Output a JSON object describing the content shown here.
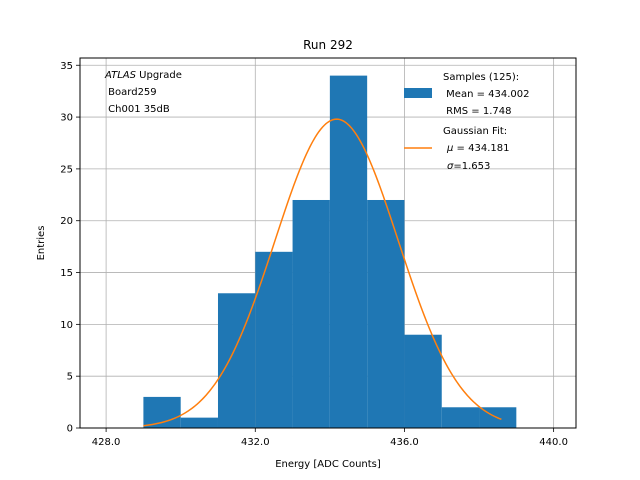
{
  "chart_data": {
    "type": "bar",
    "title": "Run 292",
    "xlabel": "Energy [ADC Counts]",
    "ylabel": "Entries",
    "xlim": [
      427.3,
      440.6
    ],
    "ylim": [
      0,
      35.7
    ],
    "xticks": [
      428.0,
      432.0,
      436.0,
      440.0
    ],
    "xtick_labels": [
      "428.0",
      "432.0",
      "436.0",
      "440.0"
    ],
    "yticks": [
      0,
      5,
      10,
      15,
      20,
      25,
      30,
      35
    ],
    "ytick_labels": [
      "0",
      "5",
      "10",
      "15",
      "20",
      "25",
      "30",
      "35"
    ],
    "grid": true,
    "bins": [
      {
        "lo": 429.0,
        "hi": 430.0,
        "count": 3
      },
      {
        "lo": 430.0,
        "hi": 431.0,
        "count": 1
      },
      {
        "lo": 431.0,
        "hi": 432.0,
        "count": 13
      },
      {
        "lo": 432.0,
        "hi": 433.0,
        "count": 17
      },
      {
        "lo": 433.0,
        "hi": 434.0,
        "count": 22
      },
      {
        "lo": 434.0,
        "hi": 435.0,
        "count": 34
      },
      {
        "lo": 435.0,
        "hi": 436.0,
        "count": 22
      },
      {
        "lo": 436.0,
        "hi": 437.0,
        "count": 9
      },
      {
        "lo": 437.0,
        "hi": 438.0,
        "count": 2
      },
      {
        "lo": 438.0,
        "hi": 439.0,
        "count": 2
      }
    ],
    "fit": {
      "amplitude": 29.8,
      "mu": 434.181,
      "sigma": 1.653,
      "x_min": 429.0,
      "x_max": 438.6
    },
    "colors": {
      "hist": "#1f77b4",
      "fit": "#ff7f0e",
      "grid": "#b0b0b0"
    },
    "annotation": {
      "line1_italic": "ATLAS",
      "line1_rest": " Upgrade",
      "line2": " Board259",
      "line3": " Ch001 35dB"
    },
    "legend": {
      "location": "top-right",
      "samples_title": "Samples (125):",
      "samples_mean": " Mean = 434.002",
      "samples_rms": " RMS = 1.748",
      "fit_title": "Gaussian Fit:",
      "fit_mu_symbol": "μ",
      "fit_mu_text": " = 434.181",
      "fit_sigma_symbol": "σ",
      "fit_sigma_text": "=1.653"
    }
  }
}
